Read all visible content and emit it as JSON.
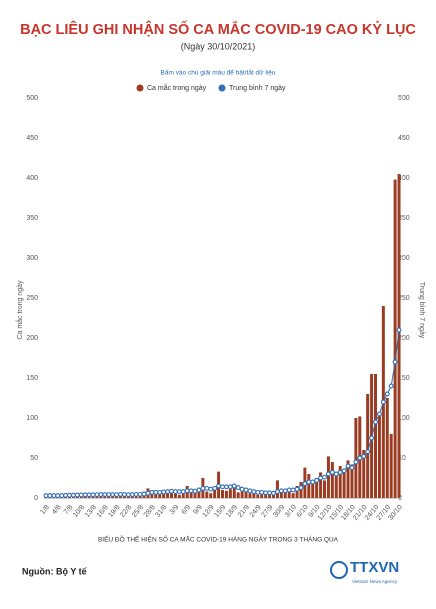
{
  "chart_data": {
    "type": "bar",
    "title": "BẠC LIÊU GHI NHẬN SỐ CA MẮC COVID-19 CAO KỶ LỤC",
    "subtitle": "(Ngày 30/10/2021)",
    "hint": "Bấm vào chú giải màu để bật/tắt dữ liệu",
    "y_label": "Ca mắc trong ngày",
    "y2_label": "Trung bình 7 ngày",
    "x_label": "BIỂU ĐỒ THỂ HIỆN SỐ CA MẮC COVID-19 HÀNG NGÀY TRONG 3 THÁNG QUA",
    "source": "Nguồn: Bộ Y tế",
    "logo": "TTXVN",
    "logo_sub": "Vietnam News Agency",
    "categories": [
      "1/8",
      null,
      null,
      "4/8",
      null,
      null,
      "7/8",
      null,
      null,
      "10/8",
      null,
      null,
      "13/8",
      null,
      null,
      "16/8",
      null,
      null,
      "19/8",
      null,
      null,
      "22/8",
      null,
      null,
      "25/8",
      null,
      null,
      "28/8",
      null,
      null,
      "31/8",
      null,
      null,
      "3/9",
      null,
      null,
      "6/9",
      null,
      null,
      "9/9",
      null,
      null,
      "12/9",
      null,
      null,
      "15/9",
      null,
      null,
      "18/9",
      null,
      null,
      "21/9",
      null,
      null,
      "24/9",
      null,
      null,
      "27/9",
      null,
      null,
      "30/9",
      null,
      null,
      "3/10",
      null,
      null,
      "6/10",
      null,
      null,
      "9/10",
      null,
      null,
      "12/10",
      null,
      null,
      "15/10",
      null,
      null,
      "18/10",
      null,
      null,
      "21/10",
      null,
      null,
      "24/10",
      null,
      null,
      "27/10",
      null,
      null,
      "30/10"
    ],
    "series": [
      {
        "name": "Ca mắc trong ngày",
        "type": "bar",
        "color": "#9b3b22",
        "values": [
          3,
          2,
          4,
          2,
          3,
          5,
          4,
          3,
          6,
          4,
          5,
          4,
          3,
          6,
          5,
          4,
          3,
          5,
          4,
          6,
          4,
          3,
          5,
          6,
          4,
          8,
          12,
          10,
          6,
          5,
          7,
          8,
          6,
          5,
          4,
          10,
          15,
          9,
          7,
          12,
          25,
          8,
          6,
          12,
          33,
          10,
          9,
          11,
          15,
          7,
          10,
          8,
          6,
          5,
          4,
          6,
          7,
          8,
          5,
          22,
          10,
          8,
          12,
          6,
          15,
          20,
          38,
          30,
          18,
          25,
          32,
          22,
          52,
          45,
          28,
          40,
          35,
          47,
          42,
          100,
          102,
          60,
          130,
          155,
          155,
          105,
          240,
          125,
          80,
          398,
          405
        ]
      },
      {
        "name": "Trung bình 7 ngày",
        "type": "line",
        "axis": "y2",
        "color": "#2f6db5",
        "values": [
          3,
          3,
          3,
          3,
          3,
          3.3,
          3.5,
          3.5,
          3.8,
          3.8,
          4,
          4,
          4,
          4.2,
          4.3,
          4.3,
          4.2,
          4.3,
          4.2,
          4.5,
          4.3,
          4.2,
          4.3,
          4.5,
          4.5,
          5,
          6,
          7,
          7,
          7,
          7.5,
          8,
          8.5,
          8,
          8,
          8,
          9,
          9,
          8.5,
          10,
          12,
          12,
          11,
          12,
          15,
          14,
          14,
          14,
          15,
          13,
          11,
          10,
          9,
          8,
          7,
          7,
          6.5,
          6.5,
          6,
          8,
          9,
          9,
          10,
          10,
          11,
          13,
          18,
          20,
          20,
          22,
          25,
          26,
          30,
          32,
          30,
          32,
          34,
          40,
          38,
          45,
          50,
          52,
          58,
          75,
          95,
          105,
          120,
          130,
          140,
          170,
          210
        ]
      }
    ],
    "ylim": [
      0,
      500
    ],
    "yticks": [
      0,
      50,
      100,
      150,
      200,
      250,
      300,
      350,
      400,
      450,
      500
    ],
    "y2lim": [
      0,
      500
    ],
    "y2ticks": [
      0,
      50,
      100,
      150,
      200,
      250,
      300,
      350,
      400,
      450,
      500
    ]
  }
}
